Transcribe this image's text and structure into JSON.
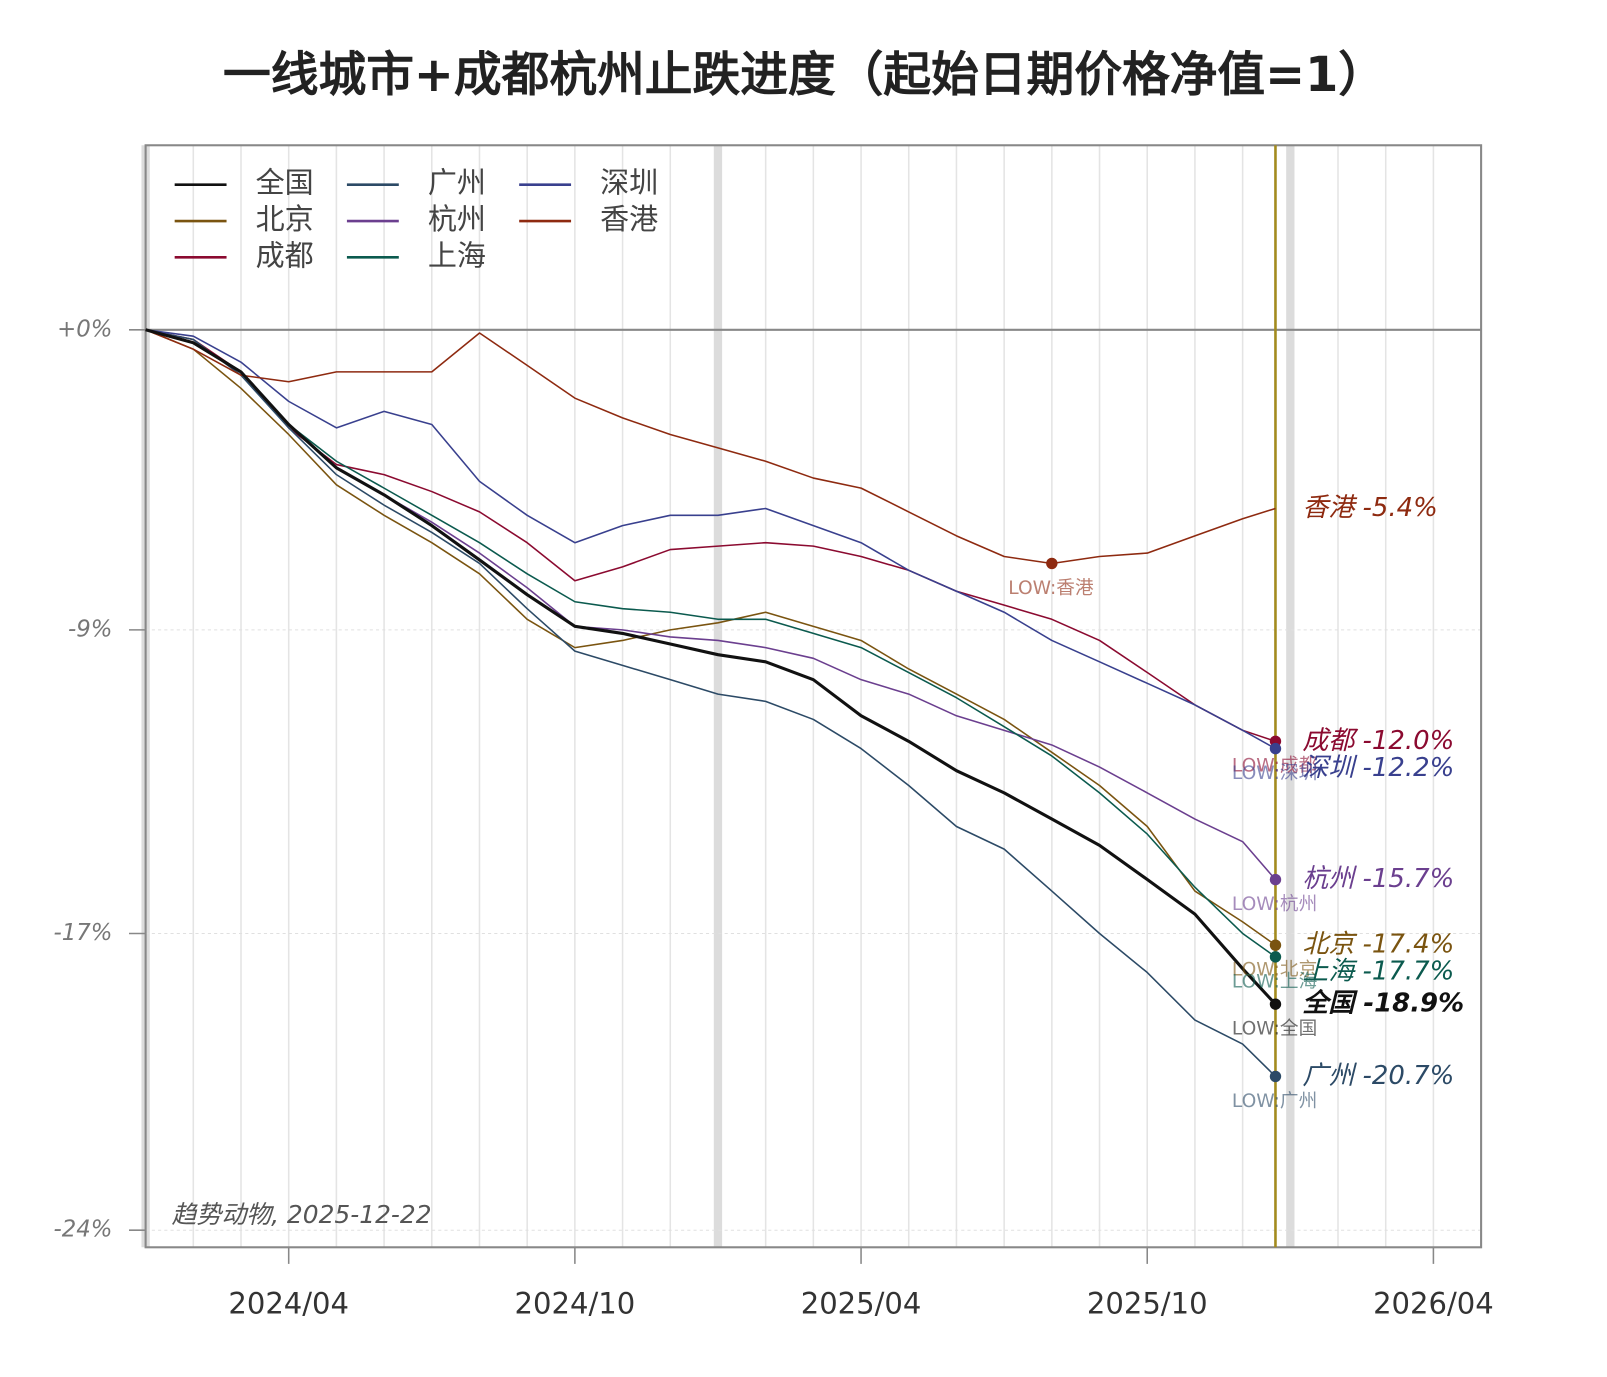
{
  "chart_data": {
    "type": "line",
    "title": "一线城市+成都杭州止跌进度（起始日期价格净值=1）",
    "caption": "趋势动物, 2025-12-22",
    "y_scale": "log",
    "xlim": [
      "2024-01",
      "2026-05"
    ],
    "ylim": [
      -24.8,
      5.9
    ],
    "xticks": [
      {
        "value": "2024-04",
        "label": "2024/04"
      },
      {
        "value": "2024-10",
        "label": "2024/10"
      },
      {
        "value": "2025-04",
        "label": "2025/04"
      },
      {
        "value": "2025-10",
        "label": "2025/10"
      },
      {
        "value": "2026-04",
        "label": "2026/04"
      }
    ],
    "yticks": [
      {
        "value": 0,
        "label": "+0%"
      },
      {
        "value": -8.9,
        "label": "-9%"
      },
      {
        "value": -17.1,
        "label": "-17%"
      },
      {
        "value": -24.4,
        "label": "-24%"
      }
    ],
    "grid": true,
    "legend": "top-left",
    "vline_color": "#a38b1e",
    "x": [
      "2024-01",
      "2024-02",
      "2024-03",
      "2024-04",
      "2024-05",
      "2024-06",
      "2024-07",
      "2024-08",
      "2024-09",
      "2024-10",
      "2024-11",
      "2024-12",
      "2025-01",
      "2025-02",
      "2025-03",
      "2025-04",
      "2025-05",
      "2025-06",
      "2025-07",
      "2025-08",
      "2025-09",
      "2025-10",
      "2025-11",
      "2025-12",
      "2025-12-22"
    ],
    "series": [
      {
        "name": "全国",
        "color": "#111111",
        "width": 3,
        "end_label": "全国 -18.9%",
        "low_label": "LOW:全国",
        "values": [
          0,
          -0.4,
          -1.3,
          -2.9,
          -4.2,
          -5.0,
          -5.9,
          -6.9,
          -7.9,
          -8.8,
          -9.0,
          -9.3,
          -9.6,
          -9.8,
          -10.3,
          -11.3,
          -12.0,
          -12.8,
          -13.4,
          -14.1,
          -14.8,
          -15.7,
          -16.6,
          -18.0,
          -18.9
        ]
      },
      {
        "name": "北京",
        "color": "#7a5410",
        "width": 1.5,
        "end_label": "北京 -17.4%",
        "low_label": "LOW:北京",
        "values": [
          0,
          -0.6,
          -1.8,
          -3.2,
          -4.7,
          -5.6,
          -6.4,
          -7.3,
          -8.6,
          -9.4,
          -9.2,
          -8.9,
          -8.7,
          -8.4,
          -8.8,
          -9.2,
          -10.0,
          -10.7,
          -11.4,
          -12.3,
          -13.2,
          -14.3,
          -16.0,
          -16.8,
          -17.4
        ]
      },
      {
        "name": "成都",
        "color": "#8b0a30",
        "width": 1.5,
        "end_label": "成都 -12.0%",
        "low_label": "LOW:成都",
        "values": [
          0,
          -0.3,
          -1.3,
          -3.0,
          -4.1,
          -4.4,
          -4.9,
          -5.5,
          -6.4,
          -7.5,
          -7.1,
          -6.6,
          -6.5,
          -6.4,
          -6.5,
          -6.8,
          -7.2,
          -7.8,
          -8.2,
          -8.6,
          -9.2,
          -10.1,
          -11.0,
          -11.7,
          -12.0
        ]
      },
      {
        "name": "广州",
        "color": "#2c4a66",
        "width": 1.5,
        "end_label": "广州 -20.7%",
        "low_label": "LOW:广州",
        "values": [
          0,
          -0.3,
          -1.4,
          -3.0,
          -4.4,
          -5.3,
          -6.1,
          -7.0,
          -8.3,
          -9.5,
          -9.9,
          -10.3,
          -10.7,
          -10.9,
          -11.4,
          -12.2,
          -13.2,
          -14.3,
          -14.9,
          -16.0,
          -17.1,
          -18.1,
          -19.3,
          -19.9,
          -20.7
        ]
      },
      {
        "name": "杭州",
        "color": "#6b3f8f",
        "width": 1.5,
        "end_label": "杭州 -15.7%",
        "low_label": "LOW:杭州",
        "values": [
          0,
          -0.4,
          -1.3,
          -2.9,
          -4.2,
          -5.0,
          -5.8,
          -6.7,
          -7.7,
          -8.8,
          -8.9,
          -9.1,
          -9.2,
          -9.4,
          -9.7,
          -10.3,
          -10.7,
          -11.3,
          -11.7,
          -12.1,
          -12.7,
          -13.4,
          -14.1,
          -14.7,
          -15.7
        ]
      },
      {
        "name": "上海",
        "color": "#0b5a4e",
        "width": 1.5,
        "end_label": "上海 -17.7%",
        "low_label": "LOW:上海",
        "values": [
          0,
          -0.4,
          -1.3,
          -2.9,
          -4.0,
          -4.8,
          -5.6,
          -6.4,
          -7.3,
          -8.1,
          -8.3,
          -8.4,
          -8.6,
          -8.6,
          -9.0,
          -9.4,
          -10.1,
          -10.8,
          -11.6,
          -12.4,
          -13.4,
          -14.5,
          -15.9,
          -17.1,
          -17.7
        ]
      },
      {
        "name": "深圳",
        "color": "#39408e",
        "width": 1.5,
        "end_label": "深圳 -12.2%",
        "low_label": "LOW:深圳",
        "values": [
          0,
          -0.2,
          -1.0,
          -2.2,
          -3.0,
          -2.5,
          -2.9,
          -4.6,
          -5.6,
          -6.4,
          -5.9,
          -5.6,
          -5.6,
          -5.4,
          -5.9,
          -6.4,
          -7.2,
          -7.8,
          -8.4,
          -9.2,
          -9.8,
          -10.4,
          -11.0,
          -11.7,
          -12.2
        ]
      },
      {
        "name": "香港",
        "color": "#8e2a10",
        "width": 1.5,
        "end_label": "香港 -5.4%",
        "low_label": "LOW:香港",
        "values": [
          0,
          -0.6,
          -1.4,
          -1.6,
          -1.3,
          -1.3,
          -1.3,
          -0.1,
          -1.1,
          -2.1,
          -2.7,
          -3.2,
          -3.6,
          -4.0,
          -4.5,
          -4.8,
          -5.5,
          -6.2,
          -6.8,
          -7.0,
          -6.8,
          -6.7,
          -6.2,
          -5.7,
          -5.4
        ]
      }
    ]
  }
}
